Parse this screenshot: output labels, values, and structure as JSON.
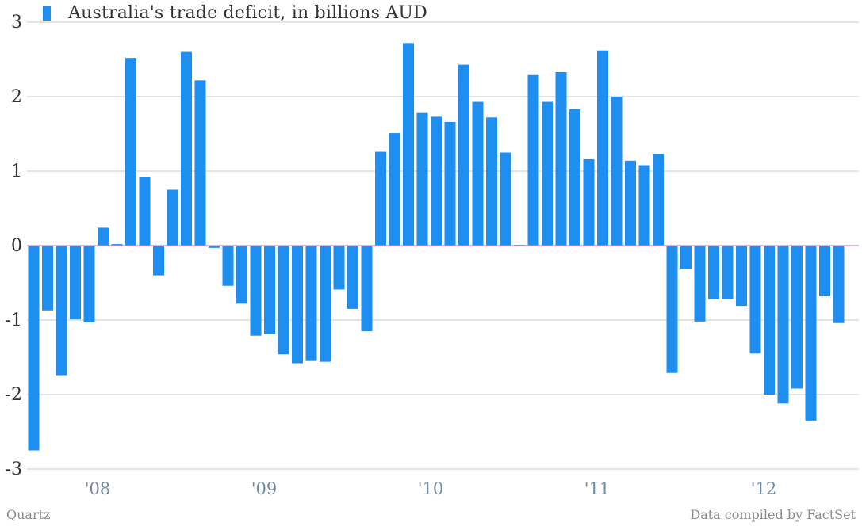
{
  "colors": {
    "bar": "#1f8ef1",
    "grid": "#c8c8c8",
    "zero_line": "#d080c0",
    "y_tick": "#333333",
    "x_tick": "#6f8aa8"
  },
  "footer": {
    "source_left": "Quartz",
    "source_right": "Data compiled by FactSet"
  },
  "chart_data": {
    "type": "bar",
    "legend": {
      "position": "top-left",
      "label": "Australia's trade deficit, in billions AUD"
    },
    "grid": true,
    "ylim": [
      -3,
      3
    ],
    "y_ticks": [
      {
        "value": 3,
        "label": "3"
      },
      {
        "value": 2,
        "label": "2"
      },
      {
        "value": 1,
        "label": "1"
      },
      {
        "value": 0,
        "label": "0"
      },
      {
        "value": -1,
        "label": "-1"
      },
      {
        "value": -2,
        "label": "-2"
      },
      {
        "value": -3,
        "label": "-3"
      }
    ],
    "x_ticks": [
      {
        "label": "'08",
        "index": 4
      },
      {
        "label": "'09",
        "index": 16
      },
      {
        "label": "'10",
        "index": 28
      },
      {
        "label": "'11",
        "index": 40
      },
      {
        "label": "'12",
        "index": 52
      }
    ],
    "series": [
      {
        "values": [
          -2.75,
          -0.87,
          -1.74,
          -0.99,
          -1.03,
          0.24,
          0.02,
          2.52,
          0.92,
          -0.4,
          0.75,
          2.6,
          2.22,
          -0.03,
          -0.54,
          -0.78,
          -1.21,
          -1.19,
          -1.46,
          -1.58,
          -1.55,
          -1.56,
          -0.59,
          -0.85,
          -1.15,
          1.26,
          1.51,
          2.72,
          1.78,
          1.73,
          1.66,
          2.43,
          1.93,
          1.72,
          1.25,
          0.01,
          2.29,
          1.93,
          2.33,
          1.83,
          1.16,
          2.62,
          2.0,
          1.14,
          1.08,
          1.23,
          -1.71,
          -0.31,
          -1.02,
          -0.72,
          -0.72,
          -0.81,
          -1.45,
          -2.0,
          -2.12,
          -1.92,
          -2.35,
          -0.68,
          -1.04
        ]
      }
    ]
  }
}
